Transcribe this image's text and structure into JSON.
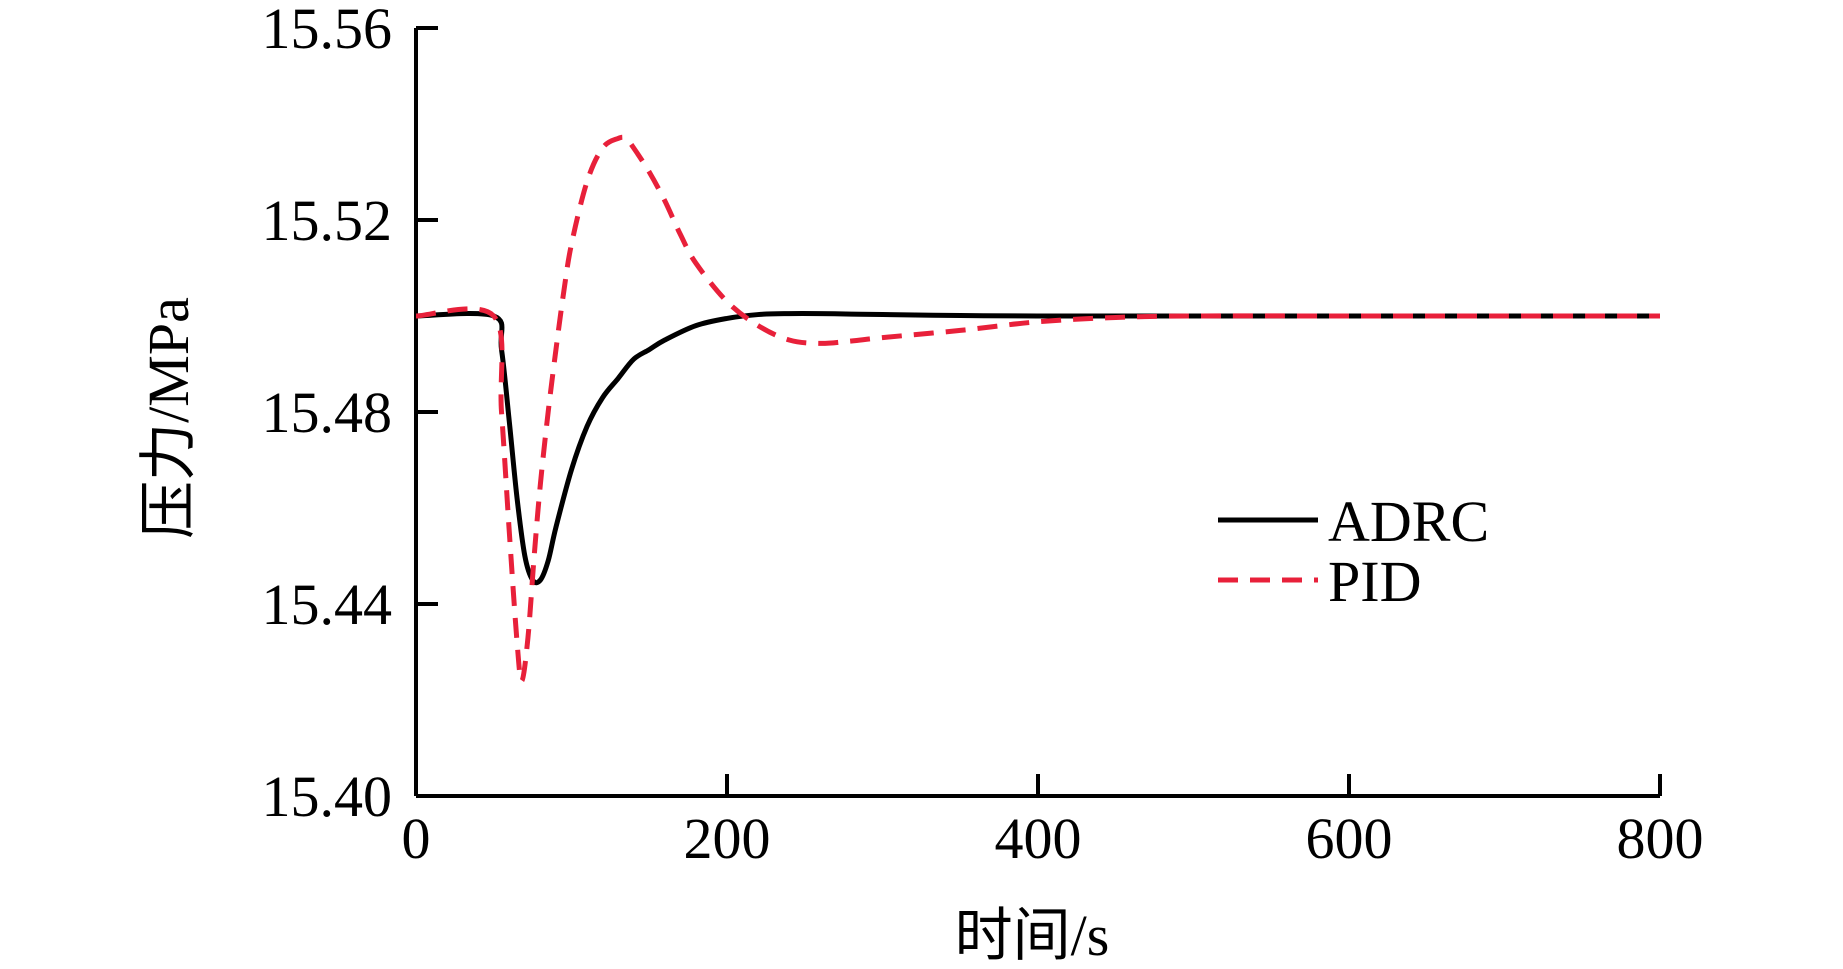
{
  "chart_data": {
    "type": "line",
    "title": "",
    "xlabel": "时间/s",
    "ylabel": "压力/MPa",
    "xlim": [
      0,
      800
    ],
    "ylim": [
      15.4,
      15.56
    ],
    "xticks": [
      0,
      200,
      400,
      600,
      800
    ],
    "xtick_labels": [
      "0",
      "200",
      "400",
      "600",
      "800"
    ],
    "yticks": [
      15.4,
      15.44,
      15.48,
      15.52,
      15.56
    ],
    "ytick_labels": [
      "15.40",
      "15.44",
      "15.48",
      "15.52",
      "15.56"
    ],
    "grid": false,
    "legend_position": "middle-right",
    "series": [
      {
        "name": "ADRC",
        "color": "#000000",
        "style": "solid",
        "x": [
          0,
          50,
          55,
          60,
          65,
          70,
          75,
          80,
          85,
          90,
          100,
          110,
          120,
          130,
          140,
          150,
          160,
          180,
          200,
          220,
          240,
          260,
          280,
          300,
          350,
          400,
          500,
          600,
          700,
          800
        ],
        "y": [
          15.5,
          15.5,
          15.493,
          15.478,
          15.462,
          15.45,
          15.445,
          15.445,
          15.449,
          15.456,
          15.468,
          15.477,
          15.483,
          15.487,
          15.491,
          15.493,
          15.495,
          15.498,
          15.4995,
          15.5003,
          15.5005,
          15.5005,
          15.5004,
          15.5003,
          15.5001,
          15.5,
          15.5,
          15.5,
          15.5,
          15.5
        ]
      },
      {
        "name": "PID",
        "color": "#e8203a",
        "style": "dashed",
        "x": [
          0,
          50,
          55,
          60,
          65,
          68,
          72,
          76,
          80,
          85,
          90,
          95,
          100,
          110,
          120,
          130,
          135,
          140,
          150,
          160,
          170,
          180,
          200,
          220,
          240,
          260,
          280,
          300,
          350,
          400,
          450,
          500,
          600,
          700,
          800
        ],
        "y": [
          15.5,
          15.5,
          15.48,
          15.455,
          15.432,
          15.424,
          15.433,
          15.45,
          15.465,
          15.48,
          15.493,
          15.505,
          15.515,
          15.528,
          15.535,
          15.537,
          15.537,
          15.535,
          15.53,
          15.524,
          15.517,
          15.511,
          15.503,
          15.498,
          15.495,
          15.4943,
          15.4948,
          15.4955,
          15.497,
          15.4988,
          15.4997,
          15.5,
          15.5,
          15.5,
          15.5
        ]
      }
    ]
  }
}
